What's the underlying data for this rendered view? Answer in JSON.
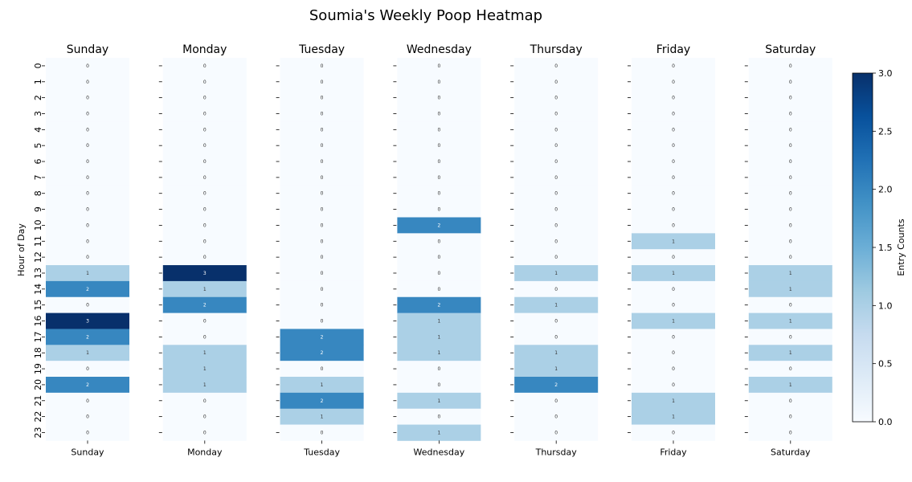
{
  "chart_data": {
    "type": "heatmap",
    "title": "Soumia's Weekly Poop Heatmap",
    "ylabel": "Hour of Day",
    "colorbar_label": "Entry Counts",
    "colorbar_ticks": [
      "0.0",
      "0.5",
      "1.0",
      "1.5",
      "2.0",
      "2.5",
      "3.0"
    ],
    "color_range": [
      0,
      3
    ],
    "colormap": [
      "#f7fbff",
      "#deebf7",
      "#c6dbef",
      "#9ecae1",
      "#6baed6",
      "#4292c6",
      "#2171b5",
      "#08519c",
      "#08306b"
    ],
    "hours": [
      "0",
      "1",
      "2",
      "3",
      "4",
      "5",
      "6",
      "7",
      "8",
      "9",
      "10",
      "11",
      "12",
      "13",
      "14",
      "15",
      "16",
      "17",
      "18",
      "19",
      "20",
      "21",
      "22",
      "23"
    ],
    "days": [
      {
        "name": "Sunday",
        "values": [
          0,
          0,
          0,
          0,
          0,
          0,
          0,
          0,
          0,
          0,
          0,
          0,
          0,
          1,
          2,
          0,
          3,
          2,
          1,
          0,
          2,
          0,
          0,
          0
        ]
      },
      {
        "name": "Monday",
        "values": [
          0,
          0,
          0,
          0,
          0,
          0,
          0,
          0,
          0,
          0,
          0,
          0,
          0,
          3,
          1,
          2,
          0,
          0,
          1,
          1,
          1,
          0,
          0,
          0
        ]
      },
      {
        "name": "Tuesday",
        "values": [
          0,
          0,
          0,
          0,
          0,
          0,
          0,
          0,
          0,
          0,
          0,
          0,
          0,
          0,
          0,
          0,
          0,
          2,
          2,
          0,
          1,
          2,
          1,
          0
        ]
      },
      {
        "name": "Wednesday",
        "values": [
          0,
          0,
          0,
          0,
          0,
          0,
          0,
          0,
          0,
          0,
          2,
          0,
          0,
          0,
          0,
          2,
          1,
          1,
          1,
          0,
          0,
          1,
          0,
          1
        ]
      },
      {
        "name": "Thursday",
        "values": [
          0,
          0,
          0,
          0,
          0,
          0,
          0,
          0,
          0,
          0,
          0,
          0,
          0,
          1,
          0,
          1,
          0,
          0,
          1,
          1,
          2,
          0,
          0,
          0
        ]
      },
      {
        "name": "Friday",
        "values": [
          0,
          0,
          0,
          0,
          0,
          0,
          0,
          0,
          0,
          0,
          0,
          1,
          0,
          1,
          0,
          0,
          1,
          0,
          0,
          0,
          0,
          1,
          1,
          0
        ]
      },
      {
        "name": "Saturday",
        "values": [
          0,
          0,
          0,
          0,
          0,
          0,
          0,
          0,
          0,
          0,
          0,
          0,
          0,
          1,
          1,
          0,
          1,
          0,
          1,
          0,
          1,
          0,
          0,
          0
        ]
      }
    ]
  }
}
